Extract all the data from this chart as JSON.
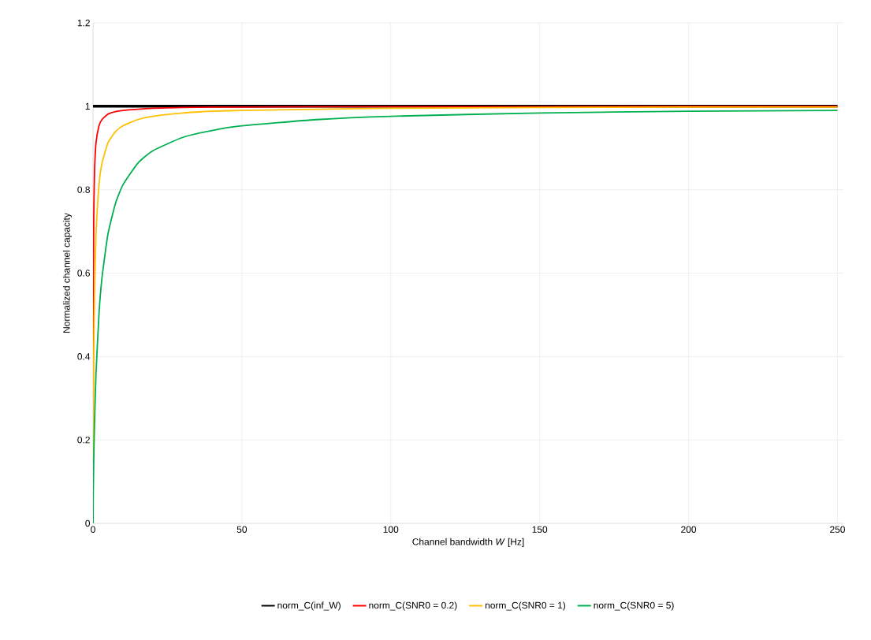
{
  "chart_data": {
    "type": "line",
    "xlabel": "Channel bandwidth *W* [Hz]",
    "ylabel": "Normalized channel capacity",
    "xlim": [
      0,
      252
    ],
    "ylim": [
      0,
      1.2
    ],
    "xticks": [
      0,
      50,
      100,
      150,
      200,
      250
    ],
    "yticks": [
      0,
      0.2,
      0.4,
      0.6,
      0.8,
      1,
      1.2
    ],
    "grid": true,
    "legend": "bottom",
    "marker": "none",
    "line_style": "solid",
    "series": [
      {
        "name": "norm_C(inf_W)",
        "color": "#000000",
        "x": [
          0,
          250
        ],
        "values": [
          1,
          1
        ]
      },
      {
        "name": "norm_C(SNR0 = 0.2)",
        "color": "#ff0000",
        "x": [
          0,
          0.1,
          0.25,
          0.5,
          1,
          2,
          3,
          5,
          7.5,
          10,
          15,
          20,
          30,
          40,
          50,
          75,
          100,
          150,
          200,
          250
        ],
        "values": [
          0,
          0.549,
          0.735,
          0.841,
          0.912,
          0.953,
          0.968,
          0.981,
          0.987,
          0.99,
          0.993,
          0.995,
          0.997,
          0.998,
          0.998,
          0.999,
          0.999,
          0.999,
          1,
          1
        ]
      },
      {
        "name": "norm_C(SNR0 = 1)",
        "color": "#ffc000",
        "x": [
          0,
          0.1,
          0.25,
          0.5,
          1,
          2,
          3,
          5,
          7.5,
          10,
          15,
          20,
          30,
          40,
          50,
          75,
          100,
          150,
          200,
          250
        ],
        "values": [
          0,
          0.24,
          0.402,
          0.549,
          0.693,
          0.811,
          0.863,
          0.912,
          0.939,
          0.953,
          0.968,
          0.976,
          0.984,
          0.988,
          0.99,
          0.993,
          0.995,
          0.997,
          0.998,
          0.998
        ]
      },
      {
        "name": "norm_C(SNR0 = 5)",
        "color": "#00b050",
        "x": [
          0,
          0.1,
          0.25,
          0.5,
          1,
          2,
          3,
          5,
          7.5,
          10,
          15,
          20,
          30,
          40,
          50,
          75,
          100,
          150,
          200,
          250
        ],
        "values": [
          0,
          0.079,
          0.152,
          0.24,
          0.358,
          0.501,
          0.588,
          0.693,
          0.766,
          0.811,
          0.863,
          0.893,
          0.925,
          0.942,
          0.953,
          0.968,
          0.976,
          0.984,
          0.988,
          0.99
        ]
      }
    ]
  }
}
